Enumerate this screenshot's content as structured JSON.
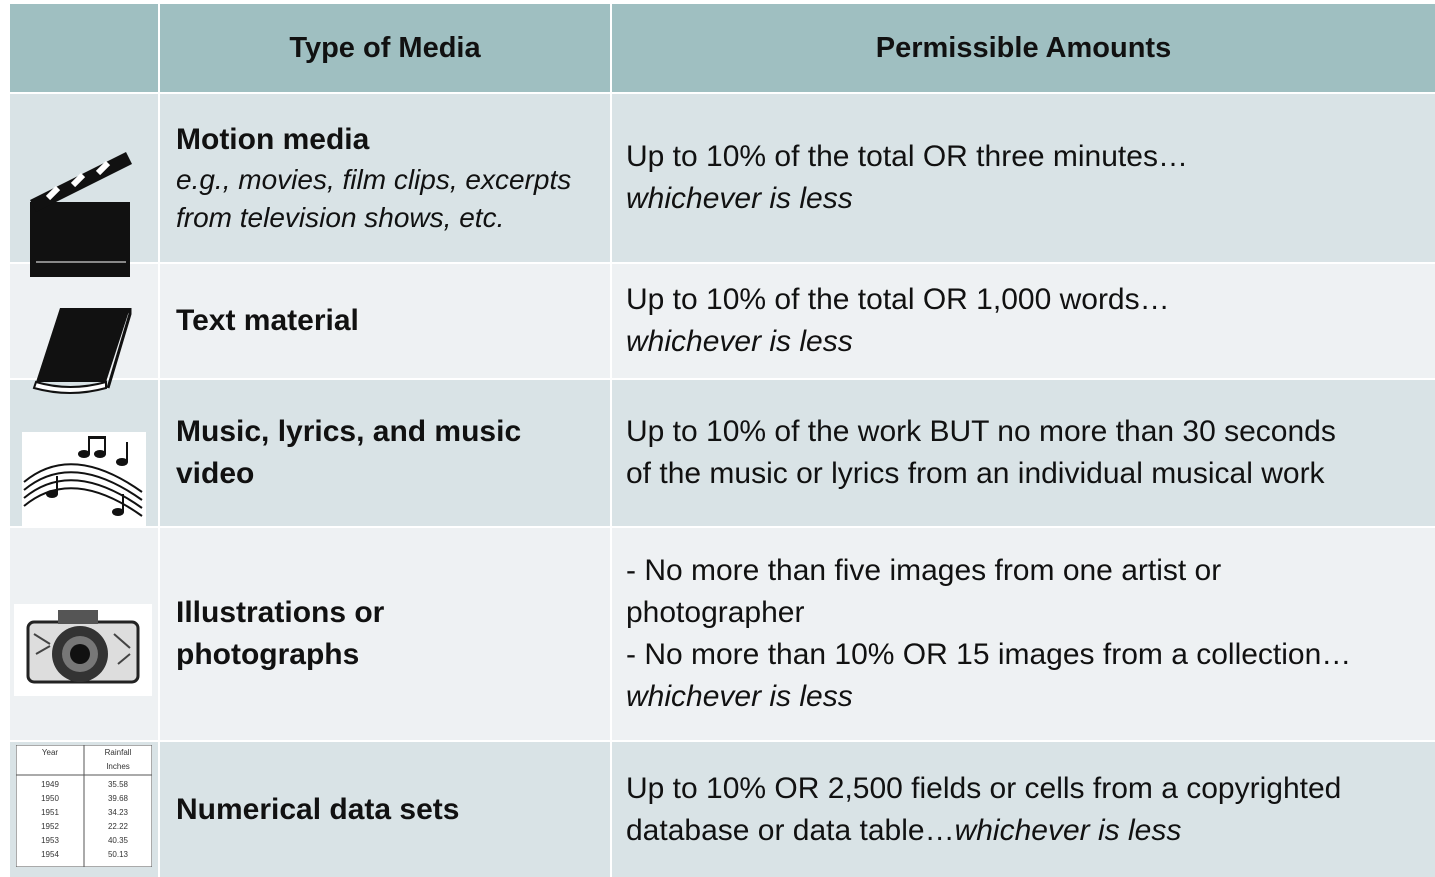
{
  "table": {
    "header": [
      "Type of Media",
      "Permissible Amounts"
    ],
    "rows": [
      {
        "media": [
          "Motion media"
        ],
        "description": [
          "e.g., movies, film clips, excerpts",
          "from television shows, etc."
        ],
        "amount": [
          [
            {
              "text": "Up to 10% of the total OR three minutes…",
              "italic": false
            }
          ],
          [
            {
              "text": "whichever is less",
              "italic": true
            }
          ]
        ]
      },
      {
        "media": [
          "Text material"
        ],
        "amount": [
          [
            {
              "text": "Up to 10% of the total OR 1,000 words…",
              "italic": false
            }
          ],
          [
            {
              "text": "whichever is less",
              "italic": true
            }
          ]
        ]
      },
      {
        "media": [
          "Music, lyrics, and music",
          "video"
        ],
        "amount": [
          [
            {
              "text": "Up to 10% of the work BUT no more than 30 seconds",
              "italic": false
            }
          ],
          [
            {
              "text": "of the music or lyrics from an individual musical work",
              "italic": false
            }
          ]
        ]
      },
      {
        "media": [
          "Illustrations or",
          "photographs"
        ],
        "amount": [
          [
            {
              "text": "- No more than five images from one artist or",
              "italic": false
            }
          ],
          [
            {
              "text": "photographer",
              "italic": false
            }
          ],
          [
            {
              "text": "- No more than 10% OR 15 images from a collection…",
              "italic": false
            }
          ],
          [
            {
              "text": "whichever is less",
              "italic": true
            }
          ]
        ]
      },
      {
        "media": [
          "Numerical data sets"
        ],
        "amount": [
          [
            {
              "text": "Up to 10% OR 2,500 fields or cells from a copyrighted",
              "italic": false
            }
          ],
          [
            {
              "text": "database or data table…",
              "italic": false
            },
            {
              "text": "whichever is less",
              "italic": true
            }
          ]
        ]
      }
    ]
  },
  "icon_table": {
    "header": [
      "Year",
      "Rainfall"
    ],
    "unit": "Inches",
    "rows": [
      [
        "1949",
        "35.58"
      ],
      [
        "1950",
        "39.68"
      ],
      [
        "1951",
        "34.23"
      ],
      [
        "1952",
        "22.22"
      ],
      [
        "1953",
        "40.35"
      ],
      [
        "1954",
        "50.13"
      ]
    ]
  }
}
